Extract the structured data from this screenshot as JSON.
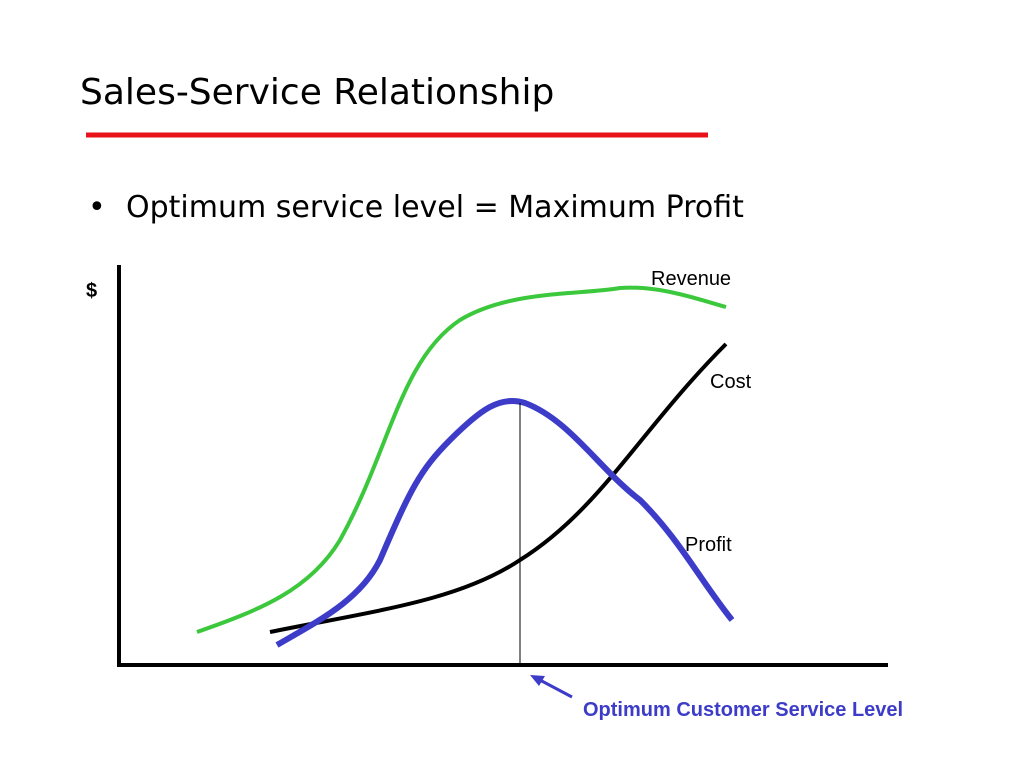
{
  "header": {
    "title": "Sales-Service Relationship"
  },
  "bullets": [
    "Optimum service level = Maximum Profit"
  ],
  "diagram": {
    "y_axis_label": "$",
    "curves": [
      "Revenue",
      "Cost",
      "Profit"
    ],
    "annotation": "Optimum Customer Service Level"
  }
}
